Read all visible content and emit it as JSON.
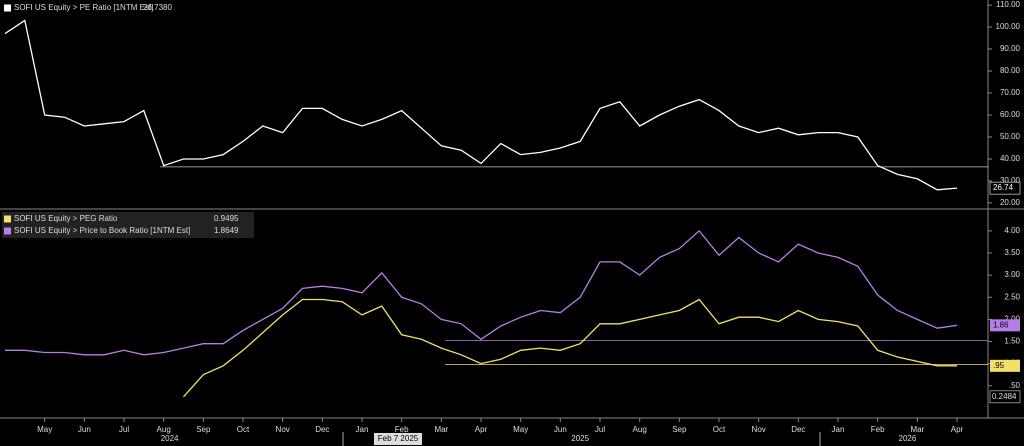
{
  "chart_data": [
    {
      "type": "line",
      "series": [
        {
          "name": "SOFI US Equity > PE Ratio [1NTM Est]",
          "color": "#ffffff",
          "legend_value": "26.7380",
          "last_label": "26.74",
          "values": [
            97,
            103,
            60,
            59,
            55,
            56,
            57,
            62,
            37,
            40,
            40,
            42,
            48,
            55,
            52,
            63,
            63,
            58,
            55,
            58,
            62,
            54,
            46,
            44,
            38,
            47,
            42,
            43,
            45,
            48,
            63,
            66,
            55,
            60,
            64,
            67,
            62,
            55,
            52,
            54,
            51,
            52,
            52,
            50,
            37,
            33,
            31,
            26,
            26.738
          ]
        }
      ],
      "hlines": [
        {
          "value": 36.4,
          "color": "#cccccc"
        }
      ],
      "ylim": [
        17.7,
        112.3
      ],
      "yticks": [
        {
          "value": 20,
          "label": "20.00"
        },
        {
          "value": 30,
          "label": "30.00"
        },
        {
          "value": 40,
          "label": "40.00"
        },
        {
          "value": 50,
          "label": "50.00"
        },
        {
          "value": 60,
          "label": "60.00"
        },
        {
          "value": 70,
          "label": "70.00"
        },
        {
          "value": 80,
          "label": "80.00"
        },
        {
          "value": 90,
          "label": "90.00"
        },
        {
          "value": 100,
          "label": "100.00"
        },
        {
          "value": 110,
          "label": "110.00"
        }
      ]
    },
    {
      "type": "line",
      "categories": [
        null,
        null,
        "May",
        null,
        "Jun",
        null,
        "Jul",
        null,
        "Aug",
        null,
        "Sep",
        null,
        "Oct",
        null,
        "Nov",
        null,
        "Dec",
        null,
        "Jan",
        null,
        "Feb",
        null,
        "Mar",
        null,
        "Apr",
        null,
        "May",
        null,
        "Jun",
        null,
        "Jul",
        null,
        "Aug",
        null,
        "Sep",
        null,
        "Oct",
        null,
        "Nov",
        null,
        "Dec",
        null,
        "Jan",
        null,
        "Feb",
        null,
        "Mar",
        null,
        "Apr"
      ],
      "years": [
        "2024",
        "2025",
        "2026"
      ],
      "cursor_label": "Feb 7 2025",
      "series": [
        {
          "name": "SOFI US Equity > PEG Ratio",
          "color": "#f2e06b",
          "legend_value": "0.9495",
          "last_label": ".95",
          "values": [
            null,
            null,
            null,
            null,
            null,
            null,
            null,
            null,
            null,
            0.25,
            0.75,
            0.95,
            1.3,
            1.7,
            2.1,
            2.45,
            2.45,
            2.4,
            2.1,
            2.3,
            1.65,
            1.55,
            1.35,
            1.2,
            1.0,
            1.1,
            1.3,
            1.35,
            1.3,
            1.45,
            1.9,
            1.9,
            2.0,
            2.1,
            2.2,
            2.45,
            1.9,
            2.05,
            2.05,
            1.95,
            2.2,
            2.0,
            1.95,
            1.85,
            1.3,
            1.15,
            1.05,
            0.95,
            0.9495
          ]
        },
        {
          "name": "SOFI US Equity > Price to Book Ratio [1NTM Est]",
          "color": "#b77de8",
          "legend_value": "1.8649",
          "last_label": "1.86",
          "values": [
            1.3,
            1.3,
            1.25,
            1.25,
            1.2,
            1.2,
            1.3,
            1.2,
            1.25,
            1.35,
            1.45,
            1.45,
            1.75,
            2.0,
            2.25,
            2.7,
            2.75,
            2.7,
            2.6,
            3.05,
            2.5,
            2.35,
            2.0,
            1.9,
            1.55,
            1.85,
            2.05,
            2.2,
            2.15,
            2.5,
            3.3,
            3.3,
            3.0,
            3.4,
            3.6,
            4.0,
            3.45,
            3.85,
            3.5,
            3.3,
            3.7,
            3.5,
            3.4,
            3.2,
            2.55,
            2.2,
            2.0,
            1.8,
            1.8649
          ]
        }
      ],
      "hlines": [
        {
          "value": 1.52,
          "color": "#b77de8"
        },
        {
          "value": 0.98,
          "color": "#f2e06b"
        }
      ],
      "min_badge": 0.2484,
      "ylim": [
        -0.23,
        4.45
      ],
      "yticks": [
        {
          "value": 0.5,
          "label": ".50"
        },
        {
          "value": 1,
          "label": "1.00"
        },
        {
          "value": 1.5,
          "label": "1.50"
        },
        {
          "value": 2,
          "label": "2.00"
        },
        {
          "value": 2.5,
          "label": "2.50"
        },
        {
          "value": 3,
          "label": "3.00"
        },
        {
          "value": 3.5,
          "label": "3.50"
        },
        {
          "value": 4,
          "label": "4.00"
        }
      ]
    }
  ]
}
